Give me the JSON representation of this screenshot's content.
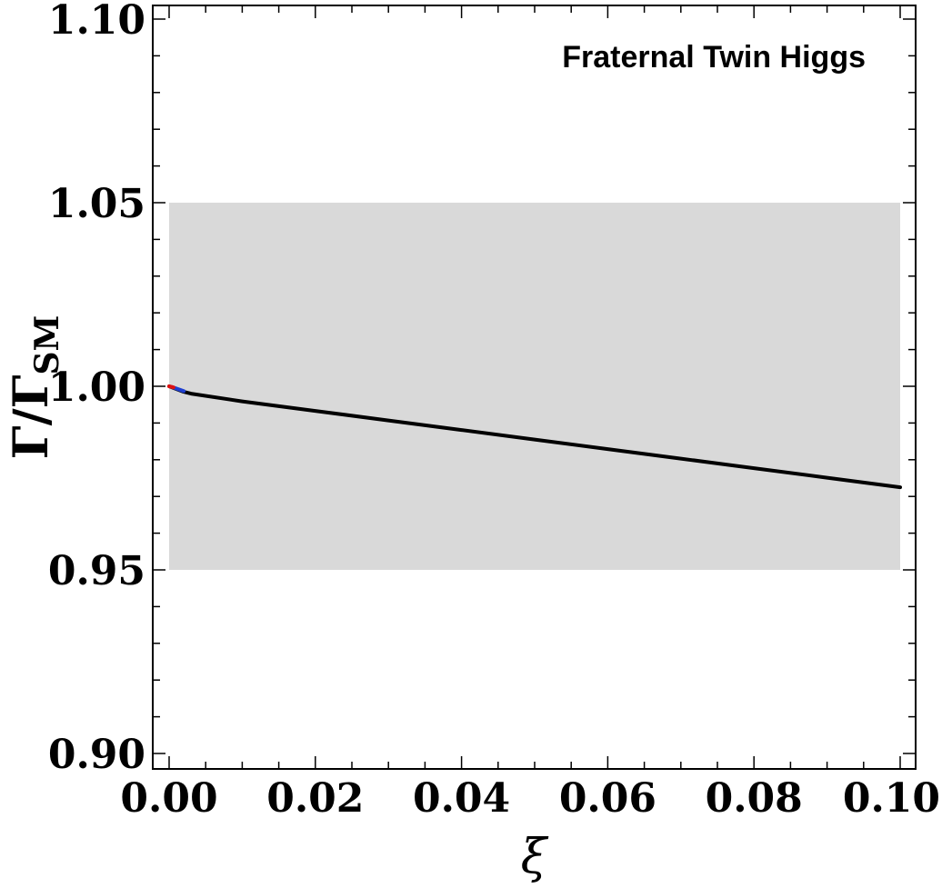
{
  "chart_data": {
    "type": "line",
    "title": "",
    "annotation": "Fraternal Twin Higgs",
    "xlabel": "ξ",
    "ylabel_main": "Γ/Γ",
    "ylabel_sub": "SM",
    "xlim": [
      0.0,
      0.1
    ],
    "ylim": [
      0.9,
      1.1
    ],
    "x_ticks": [
      "0.00",
      "0.02",
      "0.04",
      "0.06",
      "0.08",
      "0.10"
    ],
    "y_ticks": [
      "0.90",
      "0.95",
      "1.00",
      "1.05",
      "1.10"
    ],
    "x_tick_values": [
      0.0,
      0.02,
      0.04,
      0.06,
      0.08,
      0.1
    ],
    "y_tick_values": [
      0.9,
      0.95,
      1.0,
      1.05,
      1.1
    ],
    "band": {
      "x": [
        0.0,
        0.1
      ],
      "y": [
        0.95,
        1.05
      ],
      "color": "#d9d9d9"
    },
    "series": [
      {
        "color": "#000000",
        "x": [
          0.0,
          0.002,
          0.003,
          0.01,
          0.02,
          0.03,
          0.04,
          0.05,
          0.06,
          0.07,
          0.08,
          0.09,
          0.1
        ],
        "y": [
          1.0,
          0.9985,
          0.998,
          0.9959,
          0.9933,
          0.9907,
          0.9881,
          0.9855,
          0.9829,
          0.9803,
          0.9777,
          0.9751,
          0.9725
        ]
      },
      {
        "color": "#1f3fd0",
        "x": [
          0.0004,
          0.002
        ],
        "y": [
          0.9998,
          0.9987
        ]
      },
      {
        "color": "#e01010",
        "x": [
          0.0,
          0.0006
        ],
        "y": [
          1.0,
          0.9997
        ]
      }
    ],
    "grid": false,
    "legend": "none"
  }
}
